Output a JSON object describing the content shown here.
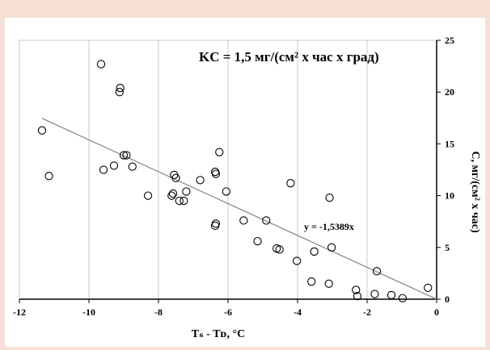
{
  "chart_data": {
    "type": "scatter",
    "title": "KС = 1,5 мг/(см² х час х град)",
    "xlabel": "Tₛ - Tᴅ, °C",
    "ylabel": "C, мг/(см² х час)",
    "xlim": [
      -12,
      0
    ],
    "ylim": [
      0,
      25
    ],
    "x_ticks": [
      -12,
      -10,
      -8,
      -6,
      -4,
      -2,
      0
    ],
    "y_ticks": [
      0,
      5,
      10,
      15,
      20,
      25
    ],
    "y_axis_position": "right",
    "grid": "vertical",
    "marker": "open-circle",
    "points": [
      {
        "x": -11.35,
        "y": 16.3
      },
      {
        "x": -11.15,
        "y": 11.9
      },
      {
        "x": -9.65,
        "y": 22.7
      },
      {
        "x": -9.1,
        "y": 20.4
      },
      {
        "x": -9.12,
        "y": 20.0
      },
      {
        "x": -9.0,
        "y": 13.9
      },
      {
        "x": -8.92,
        "y": 13.9
      },
      {
        "x": -9.58,
        "y": 12.5
      },
      {
        "x": -9.28,
        "y": 12.9
      },
      {
        "x": -8.75,
        "y": 12.8
      },
      {
        "x": -8.3,
        "y": 10.0
      },
      {
        "x": -7.55,
        "y": 12.0
      },
      {
        "x": -7.5,
        "y": 11.7
      },
      {
        "x": -7.58,
        "y": 10.2
      },
      {
        "x": -7.62,
        "y": 10.0
      },
      {
        "x": -7.4,
        "y": 9.5
      },
      {
        "x": -7.27,
        "y": 9.5
      },
      {
        "x": -7.2,
        "y": 10.4
      },
      {
        "x": -6.8,
        "y": 11.5
      },
      {
        "x": -6.37,
        "y": 12.3
      },
      {
        "x": -6.35,
        "y": 12.1
      },
      {
        "x": -6.25,
        "y": 14.2
      },
      {
        "x": -6.05,
        "y": 10.4
      },
      {
        "x": -6.35,
        "y": 7.3
      },
      {
        "x": -6.37,
        "y": 7.1
      },
      {
        "x": -5.55,
        "y": 7.6
      },
      {
        "x": -4.9,
        "y": 7.6
      },
      {
        "x": -5.15,
        "y": 5.6
      },
      {
        "x": -4.6,
        "y": 4.9
      },
      {
        "x": -4.52,
        "y": 4.8
      },
      {
        "x": -4.2,
        "y": 11.2
      },
      {
        "x": -4.02,
        "y": 3.7
      },
      {
        "x": -3.6,
        "y": 1.7
      },
      {
        "x": -3.52,
        "y": 4.6
      },
      {
        "x": -3.08,
        "y": 9.8
      },
      {
        "x": -3.02,
        "y": 5.0
      },
      {
        "x": -3.1,
        "y": 1.5
      },
      {
        "x": -2.32,
        "y": 0.9
      },
      {
        "x": -2.28,
        "y": 0.3
      },
      {
        "x": -1.78,
        "y": 0.5
      },
      {
        "x": -1.72,
        "y": 2.7
      },
      {
        "x": -1.3,
        "y": 0.4
      },
      {
        "x": -0.98,
        "y": 0.1
      },
      {
        "x": -0.25,
        "y": 1.1
      }
    ],
    "trendline": {
      "label": "y = -1,5389x",
      "slope": -1.5389,
      "x_range": [
        -11.35,
        0
      ]
    }
  },
  "colors": {
    "background": "#f7e1d6",
    "panel": "#ffffff",
    "marker": "#000000",
    "trendline": "#8c8c8c",
    "grid": "#c8c8c8"
  }
}
